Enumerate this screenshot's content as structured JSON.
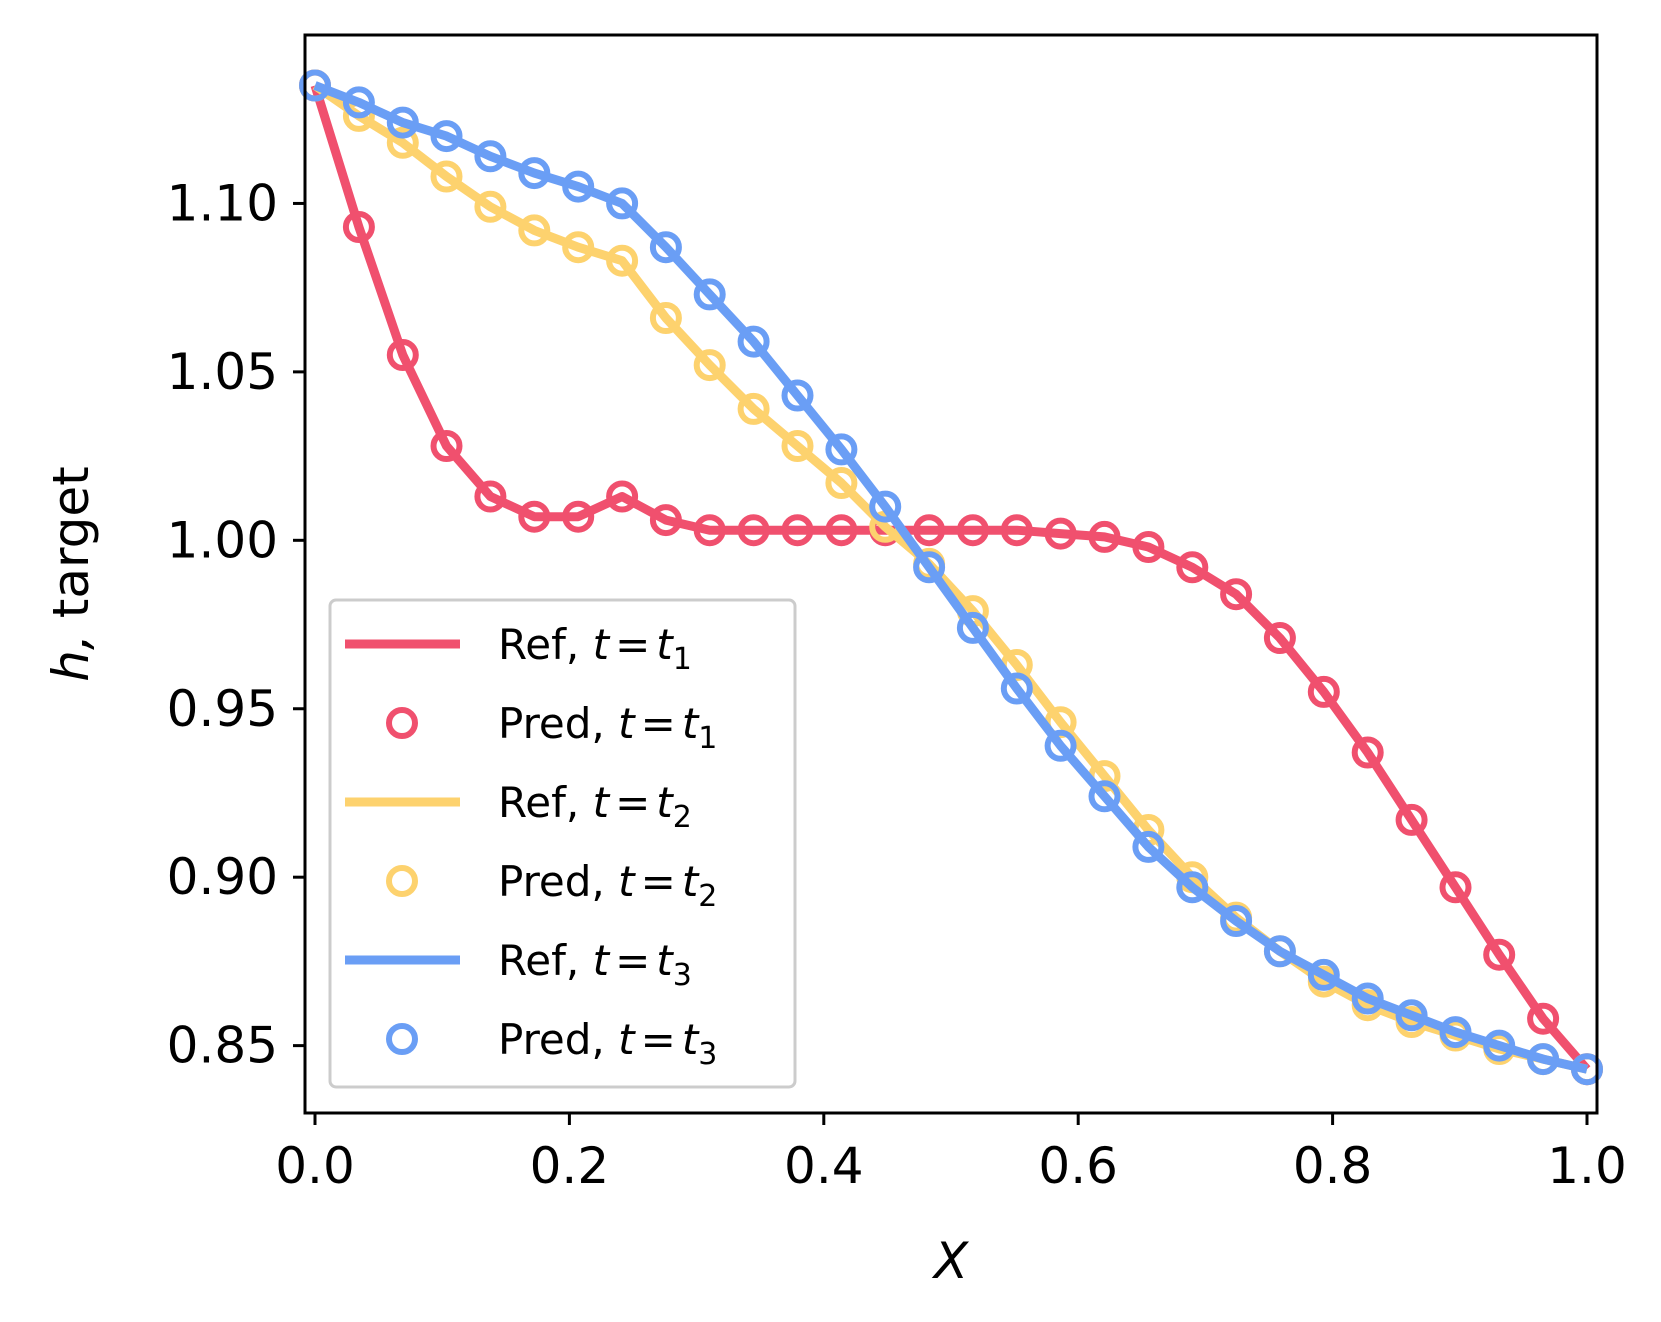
{
  "chart_data": {
    "type": "line",
    "title": "",
    "xlabel": "X",
    "ylabel_var": "h,",
    "ylabel_rest": " target",
    "xlim": [
      0.0,
      1.0
    ],
    "ylim": [
      0.83,
      1.15
    ],
    "xticks": [
      0.0,
      0.2,
      0.4,
      0.6,
      0.8,
      1.0
    ],
    "xtick_labels": [
      "0.0",
      "0.2",
      "0.4",
      "0.6",
      "0.8",
      "1.0"
    ],
    "yticks": [
      0.85,
      0.9,
      0.95,
      1.0,
      1.05,
      1.1
    ],
    "ytick_labels": [
      "0.85",
      "0.90",
      "0.95",
      "1.00",
      "1.05",
      "1.10"
    ],
    "grid": false,
    "legend_position": "lower-left",
    "x": [
      0.0,
      0.0345,
      0.069,
      0.1034,
      0.1379,
      0.1724,
      0.2069,
      0.2414,
      0.2759,
      0.3103,
      0.3448,
      0.3793,
      0.4138,
      0.4483,
      0.4828,
      0.5172,
      0.5517,
      0.5862,
      0.6207,
      0.6552,
      0.6897,
      0.7241,
      0.7586,
      0.7931,
      0.8276,
      0.8621,
      0.8966,
      0.931,
      0.9655,
      1.0
    ],
    "series": [
      {
        "name": "t1",
        "color": "#f0506e",
        "ref_label": "Ref, ",
        "pred_label": "Pred, ",
        "eq_lhs": "t",
        "eq_op": "=",
        "eq_rhs": "t",
        "eq_sub": "1",
        "values": [
          1.135,
          1.093,
          1.055,
          1.028,
          1.013,
          1.007,
          1.007,
          1.013,
          1.006,
          1.003,
          1.003,
          1.003,
          1.003,
          1.003,
          1.003,
          1.003,
          1.003,
          1.002,
          1.001,
          0.998,
          0.992,
          0.984,
          0.971,
          0.955,
          0.937,
          0.917,
          0.897,
          0.877,
          0.858,
          0.843
        ]
      },
      {
        "name": "t2",
        "color": "#fdd26e",
        "ref_label": "Ref, ",
        "pred_label": "Pred, ",
        "eq_lhs": "t",
        "eq_op": "=",
        "eq_rhs": "t",
        "eq_sub": "2",
        "values": [
          1.135,
          1.126,
          1.118,
          1.108,
          1.099,
          1.092,
          1.087,
          1.083,
          1.066,
          1.052,
          1.039,
          1.028,
          1.017,
          1.004,
          0.993,
          0.979,
          0.963,
          0.946,
          0.93,
          0.914,
          0.9,
          0.888,
          0.878,
          0.869,
          0.862,
          0.857,
          0.853,
          0.849,
          0.846,
          0.843
        ]
      },
      {
        "name": "t3",
        "color": "#6a9ef5",
        "ref_label": "Ref, ",
        "pred_label": "Pred, ",
        "eq_lhs": "t",
        "eq_op": "=",
        "eq_rhs": "t",
        "eq_sub": "3",
        "values": [
          1.135,
          1.13,
          1.124,
          1.12,
          1.114,
          1.109,
          1.105,
          1.1,
          1.087,
          1.073,
          1.059,
          1.043,
          1.027,
          1.01,
          0.992,
          0.974,
          0.956,
          0.939,
          0.924,
          0.909,
          0.897,
          0.887,
          0.878,
          0.871,
          0.864,
          0.859,
          0.854,
          0.85,
          0.846,
          0.843
        ]
      }
    ]
  }
}
